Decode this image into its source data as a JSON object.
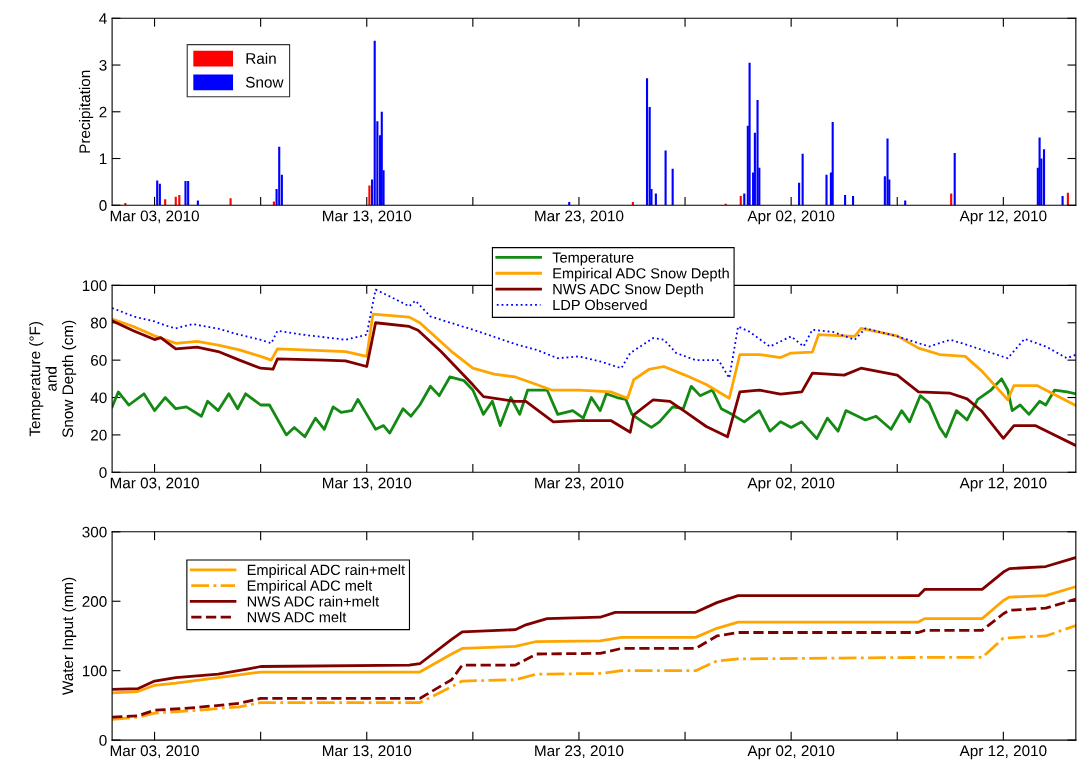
{
  "chart_data": [
    {
      "type": "bar",
      "ylabel": "Precipitation",
      "xlim": [
        "2010-03-01",
        "2010-04-15T10:00"
      ],
      "ylim": [
        0,
        4
      ],
      "yticks": [
        0,
        1,
        2,
        3,
        4
      ],
      "xticks": [
        {
          "value": "2010-03-03",
          "label": "Mar 03, 2010"
        },
        {
          "value": "2010-03-08",
          "label": null
        },
        {
          "value": "2010-03-13",
          "label": "Mar 13, 2010"
        },
        {
          "value": "2010-03-18",
          "label": null
        },
        {
          "value": "2010-03-23",
          "label": "Mar 23, 2010"
        },
        {
          "value": "2010-03-28",
          "label": null
        },
        {
          "value": "2010-04-02",
          "label": "Apr 02, 2010"
        },
        {
          "value": "2010-04-07",
          "label": null
        },
        {
          "value": "2010-04-12",
          "label": "Apr 12, 2010"
        }
      ],
      "legend": "top left",
      "grid": false,
      "series": [
        {
          "name": "Rain",
          "color": "#ff0000",
          "x": [
            "2010-03-01T15:00",
            "2010-03-03T12:00",
            "2010-03-04T00:00",
            "2010-03-04T04:00",
            "2010-03-06T14:00",
            "2010-03-08T15:00",
            "2010-03-13T03:00",
            "2010-03-25T13:00",
            "2010-03-29T22:00",
            "2010-03-30T15:00",
            "2010-04-09T13:00",
            "2010-04-15T01:00"
          ],
          "values": [
            0.05,
            0.13,
            0.18,
            0.22,
            0.15,
            0.08,
            0.42,
            0.07,
            0.03,
            0.2,
            0.25,
            0.27
          ]
        },
        {
          "name": "Snow",
          "color": "#0000ff",
          "x": [
            "2010-03-03T03:00",
            "2010-03-03T06:00",
            "2010-03-04T11:00",
            "2010-03-04T14:00",
            "2010-03-05T01:00",
            "2010-03-08T18:00",
            "2010-03-08T21:00",
            "2010-03-09T00:00",
            "2010-03-13T06:00",
            "2010-03-13T09:00",
            "2010-03-13T12:00",
            "2010-03-13T15:00",
            "2010-03-13T17:00",
            "2010-03-13T19:00",
            "2010-03-22T13:00",
            "2010-03-26T05:00",
            "2010-03-26T08:00",
            "2010-03-26T10:00",
            "2010-03-26T15:00",
            "2010-03-27T02:00",
            "2010-03-27T10:00",
            "2010-03-30T19:00",
            "2010-03-30T23:00",
            "2010-03-31T01:00",
            "2010-03-31T05:00",
            "2010-03-31T07:00",
            "2010-03-31T10:00",
            "2010-03-31T12:00",
            "2010-04-02T09:00",
            "2010-04-02T13:00",
            "2010-04-03T16:00",
            "2010-04-03T21:00",
            "2010-04-03T23:00",
            "2010-04-04T13:00",
            "2010-04-04T22:00",
            "2010-04-06T10:00",
            "2010-04-06T13:00",
            "2010-04-06T15:00",
            "2010-04-07T09:00",
            "2010-04-09T17:00",
            "2010-04-13T15:00",
            "2010-04-13T17:00",
            "2010-04-13T19:00",
            "2010-04-13T22:00",
            "2010-04-14T19:00"
          ],
          "values": [
            0.53,
            0.46,
            0.52,
            0.52,
            0.1,
            0.35,
            1.25,
            0.65,
            0.55,
            3.52,
            1.8,
            1.5,
            2.0,
            0.75,
            0.07,
            2.72,
            2.1,
            0.35,
            0.25,
            1.17,
            0.78,
            0.25,
            1.7,
            3.05,
            0.7,
            1.55,
            2.25,
            0.8,
            0.48,
            1.1,
            0.65,
            0.7,
            1.78,
            0.22,
            0.2,
            0.62,
            1.43,
            0.55,
            0.1,
            1.12,
            0.8,
            1.45,
            1.0,
            1.2,
            0.2
          ]
        }
      ]
    },
    {
      "type": "line",
      "ylabel": "Temperature (°F)\nand\nSnow Depth (cm)",
      "xlim": [
        "2010-03-01",
        "2010-04-15T10:00"
      ],
      "ylim": [
        0,
        100
      ],
      "yticks": [
        0,
        20,
        40,
        60,
        80,
        100
      ],
      "xticks": [
        {
          "value": "2010-03-03",
          "label": "Mar 03, 2010"
        },
        {
          "value": "2010-03-08",
          "label": null
        },
        {
          "value": "2010-03-13",
          "label": "Mar 13, 2010"
        },
        {
          "value": "2010-03-18",
          "label": null
        },
        {
          "value": "2010-03-23",
          "label": "Mar 23, 2010"
        },
        {
          "value": "2010-03-28",
          "label": null
        },
        {
          "value": "2010-04-02",
          "label": "Apr 02, 2010"
        },
        {
          "value": "2010-04-07",
          "label": null
        },
        {
          "value": "2010-04-12",
          "label": "Apr 12, 2010"
        }
      ],
      "legend": "top",
      "grid": false,
      "series": [
        {
          "name": "Temperature",
          "color": "#138a13",
          "line_style": "solid",
          "x": [
            "2010-03-01",
            "2010-03-01T07:00",
            "2010-03-01T19:00",
            "2010-03-02T12:00",
            "2010-03-03",
            "2010-03-03T12:00",
            "2010-03-04",
            "2010-03-04T12:00",
            "2010-03-05T05:00",
            "2010-03-05T12:00",
            "2010-03-06",
            "2010-03-06T12:00",
            "2010-03-06T22:00",
            "2010-03-07T07:00",
            "2010-03-08",
            "2010-03-08T10:00",
            "2010-03-09T05:00",
            "2010-03-09T14:00",
            "2010-03-10T02:00",
            "2010-03-10T14:00",
            "2010-03-11",
            "2010-03-11T10:00",
            "2010-03-11T19:00",
            "2010-03-12T07:00",
            "2010-03-12T14:00",
            "2010-03-13",
            "2010-03-13T10:00",
            "2010-03-13T19:00",
            "2010-03-14T02:00",
            "2010-03-14T17:00",
            "2010-03-15T02:00",
            "2010-03-15T12:00",
            "2010-03-16",
            "2010-03-16T10:00",
            "2010-03-16T22:00",
            "2010-03-17T14:00",
            "2010-03-18",
            "2010-03-18T12:00",
            "2010-03-18T22:00",
            "2010-03-19T07:00",
            "2010-03-19T19:00",
            "2010-03-20T05:00",
            "2010-03-20T14:00",
            "2010-03-21T12:00",
            "2010-03-22",
            "2010-03-22T17:00",
            "2010-03-23T05:00",
            "2010-03-23T14:00",
            "2010-03-24",
            "2010-03-24T07:00",
            "2010-03-24T19:00",
            "2010-03-25T05:00",
            "2010-03-25T12:00",
            "2010-03-26",
            "2010-03-26T10:00",
            "2010-03-26T19:00",
            "2010-03-27T10:00",
            "2010-03-27T22:00",
            "2010-03-28T07:00",
            "2010-03-28T17:00",
            "2010-03-29T07:00",
            "2010-03-29T17:00",
            "2010-03-30T05:00",
            "2010-03-30T19:00",
            "2010-03-31T12:00",
            "2010-04-01",
            "2010-04-01T12:00",
            "2010-04-02",
            "2010-04-02T12:00",
            "2010-04-03T05:00",
            "2010-04-03T17:00",
            "2010-04-04T05:00",
            "2010-04-04T14:00",
            "2010-04-05T12:00",
            "2010-04-06",
            "2010-04-06T17:00",
            "2010-04-07T05:00",
            "2010-04-07T14:00",
            "2010-04-08T02:00",
            "2010-04-08T12:00",
            "2010-04-09",
            "2010-04-09T07:00",
            "2010-04-09T19:00",
            "2010-04-10T07:00",
            "2010-04-10T19:00",
            "2010-04-11T10:00",
            "2010-04-11T22:00",
            "2010-04-12T05:00",
            "2010-04-12T10:00",
            "2010-04-12T19:00",
            "2010-04-13T05:00",
            "2010-04-13T17:00",
            "2010-04-14",
            "2010-04-14T10:00",
            "2010-04-15",
            "2010-04-15T10:00"
          ],
          "values": [
            35,
            43,
            36,
            42,
            33,
            40,
            34,
            35,
            30,
            38,
            33,
            42,
            34,
            42,
            36,
            36,
            20,
            24,
            19,
            29,
            23,
            35,
            32,
            33,
            39,
            31,
            23,
            25,
            21,
            34,
            30,
            36,
            46,
            41,
            51,
            49,
            44,
            31,
            38,
            25,
            40,
            31,
            44,
            44,
            31,
            33,
            29,
            40,
            33,
            42,
            40,
            39,
            31,
            27,
            24,
            27,
            35,
            34,
            46,
            41,
            44,
            34,
            31,
            27,
            33,
            22,
            27,
            24,
            27,
            18,
            29,
            22,
            33,
            28,
            30,
            23,
            33,
            27,
            41,
            37,
            24,
            19,
            33,
            28,
            39,
            44,
            50,
            44,
            33,
            36,
            31,
            38,
            36,
            44,
            43,
            42
          ]
        },
        {
          "name": "Empirical ADC Snow Depth",
          "color": "#ffa500",
          "line_style": "solid",
          "x": [
            "2010-03-01",
            "2010-03-02",
            "2010-03-03",
            "2010-03-04",
            "2010-03-05",
            "2010-03-06",
            "2010-03-07",
            "2010-03-08",
            "2010-03-08T12:00",
            "2010-03-08T19:00",
            "2010-03-10",
            "2010-03-12",
            "2010-03-13",
            "2010-03-13T07:00",
            "2010-03-15",
            "2010-03-15T12:00",
            "2010-03-17",
            "2010-03-18",
            "2010-03-19",
            "2010-03-20",
            "2010-03-21",
            "2010-03-21T17:00",
            "2010-03-23",
            "2010-03-24T12:00",
            "2010-03-25T07:00",
            "2010-03-25T14:00",
            "2010-03-26T07:00",
            "2010-03-27",
            "2010-03-28",
            "2010-03-29",
            "2010-03-30T02:00",
            "2010-03-30T14:00",
            "2010-03-31T12:00",
            "2010-04-01T12:00",
            "2010-04-02",
            "2010-04-03",
            "2010-04-03T07:00",
            "2010-04-05",
            "2010-04-05T07:00",
            "2010-04-07",
            "2010-04-08",
            "2010-04-09",
            "2010-04-10T05:00",
            "2010-04-11",
            "2010-04-12T05:00",
            "2010-04-12T12:00",
            "2010-04-13T14:00",
            "2010-04-15T10:00"
          ],
          "values": [
            82,
            78,
            73,
            69,
            70,
            68,
            65.5,
            62,
            60,
            66,
            65.5,
            64.6,
            62,
            84.6,
            83,
            80,
            64.6,
            55.7,
            52.5,
            51,
            47,
            44,
            44,
            43,
            39.6,
            49.5,
            55,
            56.6,
            52,
            47,
            39.6,
            63,
            63,
            61.4,
            63.8,
            64.3,
            73.6,
            72.7,
            77,
            73,
            66.4,
            63,
            62,
            54,
            38.8,
            46.4,
            46.4,
            35.7
          ]
        },
        {
          "name": "NWS ADC Snow Depth",
          "color": "#800000",
          "line_style": "solid",
          "x": [
            "2010-03-01",
            "2010-03-02",
            "2010-03-03",
            "2010-03-03T07:00",
            "2010-03-04",
            "2010-03-05",
            "2010-03-06",
            "2010-03-07",
            "2010-03-08",
            "2010-03-08T14:00",
            "2010-03-08T19:00",
            "2010-03-11",
            "2010-03-12",
            "2010-03-13",
            "2010-03-13T10:00",
            "2010-03-15",
            "2010-03-15T10:00",
            "2010-03-16T12:00",
            "2010-03-18",
            "2010-03-18T12:00",
            "2010-03-20",
            "2010-03-20T12:00",
            "2010-03-21T19:00",
            "2010-03-23",
            "2010-03-24T12:00",
            "2010-03-25T10:00",
            "2010-03-25T14:00",
            "2010-03-26T12:00",
            "2010-03-27T07:00",
            "2010-03-28",
            "2010-03-29",
            "2010-03-30",
            "2010-03-30T14:00",
            "2010-03-31T12:00",
            "2010-04-01T12:00",
            "2010-04-02T12:00",
            "2010-04-03",
            "2010-04-04T12:00",
            "2010-04-05T07:00",
            "2010-04-07",
            "2010-04-08",
            "2010-04-09T12:00",
            "2010-04-10T07:00",
            "2010-04-11",
            "2010-04-12",
            "2010-04-12T12:00",
            "2010-04-13T12:00",
            "2010-04-15T10:00"
          ],
          "values": [
            81,
            75.7,
            71,
            72,
            66,
            67,
            64.6,
            60,
            55.7,
            55.2,
            60.7,
            60,
            59.6,
            56.6,
            80,
            78,
            76,
            64.6,
            46.8,
            40.5,
            37.9,
            37.9,
            27,
            27.7,
            27.7,
            21.4,
            30.7,
            38.8,
            37.9,
            32.5,
            24.5,
            19,
            43,
            44,
            41.8,
            43,
            53,
            52,
            55.7,
            52,
            43,
            42.3,
            39.3,
            32.5,
            18.2,
            25,
            25,
            14.3
          ]
        },
        {
          "name": "LDP Observed",
          "color": "#0000ff",
          "line_style": "dotted",
          "x": [
            "2010-03-01",
            "2010-03-02",
            "2010-03-03",
            "2010-03-03T12:00",
            "2010-03-04",
            "2010-03-04T19:00",
            "2010-03-06",
            "2010-03-07",
            "2010-03-08",
            "2010-03-08T12:00",
            "2010-03-08T19:00",
            "2010-03-10",
            "2010-03-12",
            "2010-03-13",
            "2010-03-13T05:00",
            "2010-03-13T10:00",
            "2010-03-14",
            "2010-03-15",
            "2010-03-15T07:00",
            "2010-03-16",
            "2010-03-17",
            "2010-03-18",
            "2010-03-18T17:00",
            "2010-03-20",
            "2010-03-21",
            "2010-03-22",
            "2010-03-23",
            "2010-03-24",
            "2010-03-25",
            "2010-03-25T10:00",
            "2010-03-26T12:00",
            "2010-03-27",
            "2010-03-27T14:00",
            "2010-03-28T12:00",
            "2010-03-29T14:00",
            "2010-03-30T02:00",
            "2010-03-30T12:00",
            "2010-03-31",
            "2010-04-01",
            "2010-04-02",
            "2010-04-02T14:00",
            "2010-04-03",
            "2010-04-04",
            "2010-04-05",
            "2010-04-05T12:00",
            "2010-04-07",
            "2010-04-08T12:00",
            "2010-04-09T12:00",
            "2010-04-10T07:00",
            "2010-04-12T05:00",
            "2010-04-13",
            "2010-04-14",
            "2010-04-15",
            "2010-04-15T10:00"
          ],
          "values": [
            87.9,
            83.4,
            80.7,
            78.6,
            77,
            79.3,
            76.8,
            73.6,
            70.9,
            69,
            75.7,
            73.6,
            70.9,
            73.6,
            86,
            97.7,
            94.6,
            88.8,
            91.8,
            83.4,
            79.8,
            76.3,
            73.6,
            68.6,
            65.5,
            61,
            62,
            59.3,
            55.7,
            63.8,
            71.8,
            70.9,
            63.8,
            60,
            60,
            50.4,
            78,
            75.4,
            67.3,
            72.7,
            67.3,
            76.3,
            75,
            70.9,
            77,
            72.7,
            67.3,
            70.9,
            68.2,
            61,
            71.4,
            67.3,
            61,
            62.9
          ]
        }
      ]
    },
    {
      "type": "line",
      "ylabel": "Water Input (mm)",
      "xlim": [
        "2010-03-01",
        "2010-04-15T10:00"
      ],
      "ylim": [
        0,
        300
      ],
      "yticks": [
        0,
        100,
        200,
        300
      ],
      "xticks": [
        {
          "value": "2010-03-03",
          "label": "Mar 03, 2010"
        },
        {
          "value": "2010-03-08",
          "label": null
        },
        {
          "value": "2010-03-13",
          "label": "Mar 13, 2010"
        },
        {
          "value": "2010-03-18",
          "label": null
        },
        {
          "value": "2010-03-23",
          "label": "Mar 23, 2010"
        },
        {
          "value": "2010-03-28",
          "label": null
        },
        {
          "value": "2010-04-02",
          "label": "Apr 02, 2010"
        },
        {
          "value": "2010-04-07",
          "label": null
        },
        {
          "value": "2010-04-12",
          "label": "Apr 12, 2010"
        }
      ],
      "legend": "top left",
      "grid": false,
      "series": [
        {
          "name": "Empirical ADC rain+melt",
          "color": "#ffa500",
          "line_style": "solid",
          "x": [
            "2010-03-01",
            "2010-03-02T05:00",
            "2010-03-03",
            "2010-03-04",
            "2010-03-06",
            "2010-03-07T12:00",
            "2010-03-08",
            "2010-03-15T12:00",
            "2010-03-17",
            "2010-03-17T12:00",
            "2010-03-20",
            "2010-03-21",
            "2010-03-24",
            "2010-03-25",
            "2010-03-28T12:00",
            "2010-03-29T12:00",
            "2010-03-30T12:00",
            "2010-04-08",
            "2010-04-08T07:00",
            "2010-04-11",
            "2010-04-12",
            "2010-04-12T07:00",
            "2010-04-14",
            "2010-04-15T10:00"
          ],
          "values": [
            68,
            70,
            79,
            82,
            90,
            96,
            98,
            98,
            124,
            132,
            135,
            142,
            143,
            148,
            148,
            161,
            170,
            170,
            175,
            175,
            201,
            206,
            208,
            221
          ]
        },
        {
          "name": "Empirical ADC melt",
          "color": "#ffa500",
          "line_style": "dashdot",
          "x": [
            "2010-03-01",
            "2010-03-02T05:00",
            "2010-03-03",
            "2010-03-05",
            "2010-03-07",
            "2010-03-08",
            "2010-03-15T12:00",
            "2010-03-17",
            "2010-03-17T12:00",
            "2010-03-20",
            "2010-03-21",
            "2010-03-24",
            "2010-03-25",
            "2010-03-28T12:00",
            "2010-03-29T12:00",
            "2010-03-30T12:00",
            "2010-04-08",
            "2010-04-11",
            "2010-04-12",
            "2010-04-14",
            "2010-04-15T10:00"
          ],
          "values": [
            30,
            33,
            39,
            43,
            48,
            54,
            54,
            77,
            85,
            87,
            95,
            96,
            100,
            100,
            114,
            117,
            119,
            119,
            147,
            150,
            165
          ]
        },
        {
          "name": "NWS ADC rain+melt",
          "color": "#800000",
          "line_style": "solid",
          "x": [
            "2010-03-01",
            "2010-03-02T05:00",
            "2010-03-03",
            "2010-03-04",
            "2010-03-06",
            "2010-03-07T12:00",
            "2010-03-08",
            "2010-03-15",
            "2010-03-15T12:00",
            "2010-03-17",
            "2010-03-17T12:00",
            "2010-03-20",
            "2010-03-20T12:00",
            "2010-03-21T12:00",
            "2010-03-24",
            "2010-03-24T17:00",
            "2010-03-28T12:00",
            "2010-03-29T12:00",
            "2010-03-30T12:00",
            "2010-04-08",
            "2010-04-08T07:00",
            "2010-04-11",
            "2010-04-12",
            "2010-04-12T07:00",
            "2010-04-14",
            "2010-04-15T10:00"
          ],
          "values": [
            73,
            74,
            85,
            90,
            95,
            103,
            106,
            108,
            110,
            145,
            156,
            159,
            166,
            175,
            177,
            184,
            184,
            198,
            208,
            208,
            217,
            217,
            242,
            247,
            250,
            263
          ]
        },
        {
          "name": "NWS ADC melt",
          "color": "#800000",
          "line_style": "dashed",
          "x": [
            "2010-03-01",
            "2010-03-02T05:00",
            "2010-03-03",
            "2010-03-05",
            "2010-03-07",
            "2010-03-08",
            "2010-03-15T12:00",
            "2010-03-17",
            "2010-03-17T12:00",
            "2010-03-20",
            "2010-03-21",
            "2010-03-24",
            "2010-03-25",
            "2010-03-28T12:00",
            "2010-03-29T12:00",
            "2010-03-30T12:00",
            "2010-04-08",
            "2010-04-08T07:00",
            "2010-04-11",
            "2010-04-12",
            "2010-04-12T07:00",
            "2010-04-14",
            "2010-04-15T10:00"
          ],
          "values": [
            33,
            35,
            43,
            47,
            53,
            60,
            60,
            87,
            108,
            108,
            124,
            125,
            132,
            132,
            150,
            155,
            155,
            158,
            158,
            182,
            187,
            190,
            203
          ]
        }
      ]
    }
  ]
}
